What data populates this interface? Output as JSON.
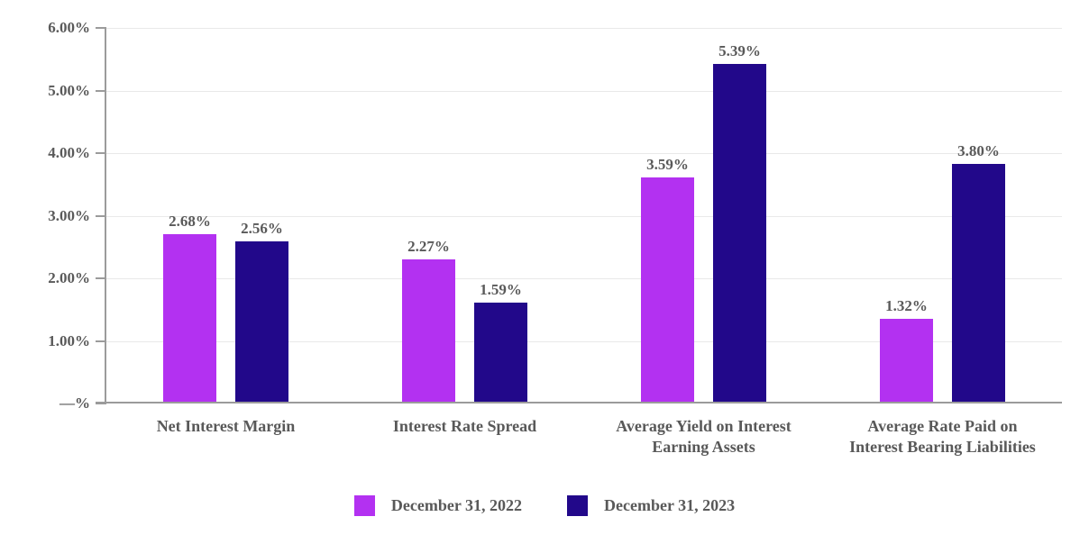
{
  "chart_data": {
    "type": "bar",
    "title": "",
    "categories": [
      "Net Interest Margin",
      "Interest Rate Spread",
      "Average Yield on Interest Earning Assets",
      "Average Rate Paid on Interest Bearing Liabilities"
    ],
    "category_lines": [
      [
        "Net Interest Margin"
      ],
      [
        "Interest Rate Spread"
      ],
      [
        "Average Yield on Interest",
        "Earning Assets"
      ],
      [
        "Average Rate Paid on",
        "Interest Bearing Liabilities"
      ]
    ],
    "series": [
      {
        "name": "December 31, 2022",
        "color": "#b331f1",
        "values": [
          2.68,
          2.27,
          3.59,
          1.32
        ],
        "labels": [
          "2.68%",
          "2.27%",
          "3.59%",
          "1.32%"
        ]
      },
      {
        "name": "December 31, 2023",
        "color": "#22088a",
        "values": [
          2.56,
          1.59,
          5.39,
          3.8
        ],
        "labels": [
          "2.56%",
          "1.59%",
          "5.39%",
          "3.80%"
        ]
      }
    ],
    "y_axis": {
      "min": 0,
      "max": 6,
      "ticks": [
        "6.00%",
        "5.00%",
        "4.00%",
        "3.00%",
        "2.00%",
        "1.00%",
        "—%"
      ]
    },
    "xlabel": "",
    "ylabel": "",
    "grid": "horizontal",
    "legend_position": "bottom",
    "colors": {
      "text": "#595959",
      "axis": "#9b9b9b",
      "gridline": "#e9e9e9"
    }
  }
}
